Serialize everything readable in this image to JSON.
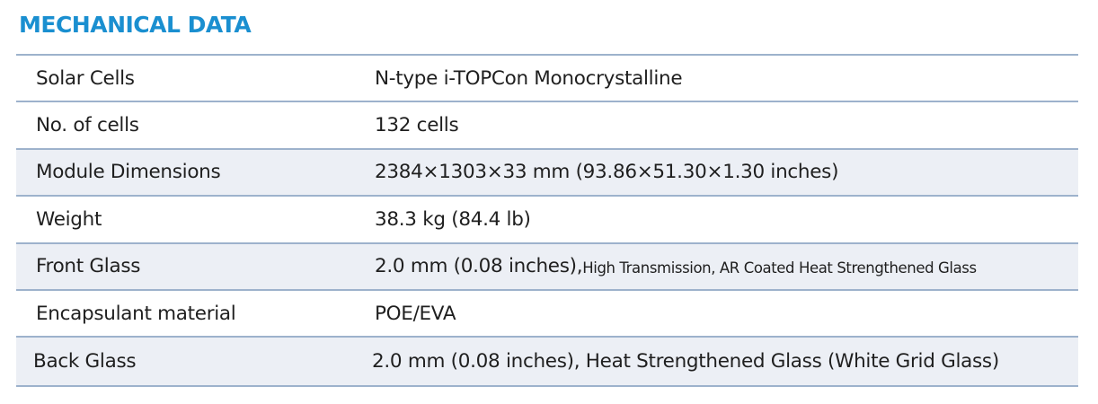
{
  "section": {
    "title": "MECHANICAL DATA"
  },
  "rows": [
    {
      "label": "Solar Cells",
      "value": "N-type i-TOPCon Monocrystalline"
    },
    {
      "label": "No. of cells",
      "value": "132 cells"
    },
    {
      "label": "Module Dimensions",
      "value": "2384×1303×33 mm (93.86×51.30×1.30 inches)"
    },
    {
      "label": "Weight",
      "value": "38.3 kg (84.4 lb)"
    },
    {
      "label": "Front Glass",
      "value": "2.0 mm (0.08 inches),",
      "value_note": " High Transmission, AR Coated Heat Strengthened Glass"
    },
    {
      "label": "Encapsulant material",
      "value": "POE/EVA"
    },
    {
      "label": "Back Glass",
      "value": "2.0 mm (0.08 inches), Heat Strengthened Glass (White Grid Glass)"
    }
  ],
  "colors": {
    "title": "#1a8fd0",
    "rule": "#9db2cc",
    "row_shade": "#eceff5",
    "text": "#1f1f1f"
  }
}
